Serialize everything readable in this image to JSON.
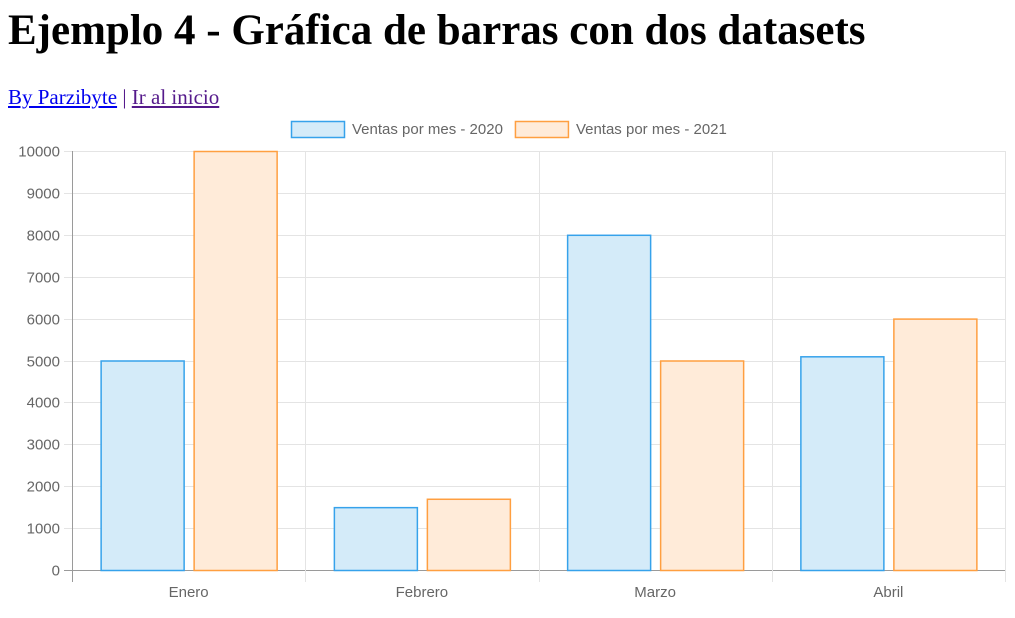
{
  "page": {
    "title": "Ejemplo 4 - Gráfica de barras con dos datasets",
    "links": {
      "author": "By Parzibyte",
      "separator": "|",
      "home": "Ir al inicio"
    }
  },
  "chart_data": {
    "type": "bar",
    "title": "",
    "xlabel": "",
    "ylabel": "",
    "categories": [
      "Enero",
      "Febrero",
      "Marzo",
      "Abril"
    ],
    "series": [
      {
        "name": "Ventas por mes - 2020",
        "values": [
          5000,
          1500,
          8000,
          5100
        ],
        "fill": "#d4ebf9",
        "stroke": "#36a2eb"
      },
      {
        "name": "Ventas por mes - 2021",
        "values": [
          10000,
          1700,
          5000,
          6000
        ],
        "fill": "#ffebd9",
        "stroke": "#ff9f40"
      }
    ],
    "ylim": [
      0,
      10000
    ],
    "yticks": [
      0,
      1000,
      2000,
      3000,
      4000,
      5000,
      6000,
      7000,
      8000,
      9000,
      10000
    ],
    "grid": true,
    "legend_position": "top"
  }
}
